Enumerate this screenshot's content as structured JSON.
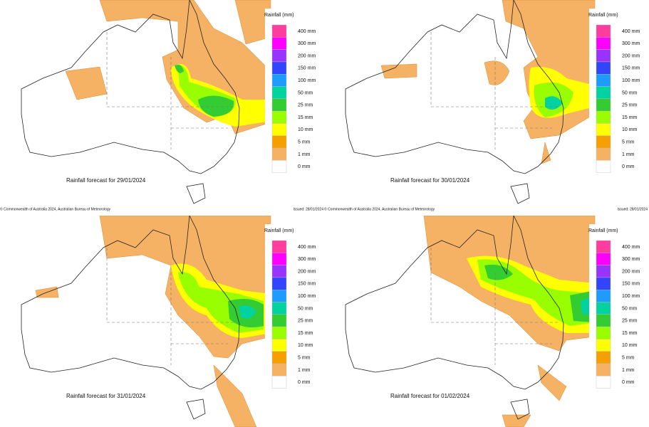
{
  "panels": [
    {
      "caption": "Rainfall forecast for 29/01/2024",
      "legend_title": "Rainfall (mm)",
      "legend": [
        {
          "label": "400 mm",
          "color": "#ff3d9e"
        },
        {
          "label": "300 mm",
          "color": "#ff00ff"
        },
        {
          "label": "200 mm",
          "color": "#9933ff"
        },
        {
          "label": "150 mm",
          "color": "#3344ff"
        },
        {
          "label": "100 mm",
          "color": "#1e9bff"
        },
        {
          "label": "50 mm",
          "color": "#00d2a0"
        },
        {
          "label": "25 mm",
          "color": "#33cc33"
        },
        {
          "label": "15 mm",
          "color": "#99ff00"
        },
        {
          "label": "10 mm",
          "color": "#ffff00"
        },
        {
          "label": "5 mm",
          "color": "#f5a000"
        },
        {
          "label": "1 mm",
          "color": "#f6b264"
        },
        {
          "label": "0 mm",
          "color": "#ffffff"
        }
      ],
      "copyright": "© Commonwealth of Australia 2024, Australian Bureau of Meteorology",
      "issued": "Issued: 28/01/2024"
    },
    {
      "caption": "Rainfall forecast for 30/01/2024",
      "legend_title": "Rainfall (mm)",
      "legend": [
        {
          "label": "400 mm",
          "color": "#ff3d9e"
        },
        {
          "label": "300 mm",
          "color": "#ff00ff"
        },
        {
          "label": "200 mm",
          "color": "#9933ff"
        },
        {
          "label": "150 mm",
          "color": "#3344ff"
        },
        {
          "label": "100 mm",
          "color": "#1e9bff"
        },
        {
          "label": "50 mm",
          "color": "#00d2a0"
        },
        {
          "label": "25 mm",
          "color": "#33cc33"
        },
        {
          "label": "15 mm",
          "color": "#99ff00"
        },
        {
          "label": "10 mm",
          "color": "#ffff00"
        },
        {
          "label": "5 mm",
          "color": "#f5a000"
        },
        {
          "label": "1 mm",
          "color": "#f6b264"
        },
        {
          "label": "0 mm",
          "color": "#ffffff"
        }
      ],
      "copyright": "© Commonwealth of Australia 2024, Australian Bureau of Meteorology",
      "issued": "Issued: 28/01/2024"
    },
    {
      "caption": "Rainfall forecast for 31/01/2024",
      "legend_title": "Rainfall (mm)",
      "legend": [
        {
          "label": "400 mm",
          "color": "#ff3d9e"
        },
        {
          "label": "300 mm",
          "color": "#ff00ff"
        },
        {
          "label": "200 mm",
          "color": "#9933ff"
        },
        {
          "label": "150 mm",
          "color": "#3344ff"
        },
        {
          "label": "100 mm",
          "color": "#1e9bff"
        },
        {
          "label": "50 mm",
          "color": "#00d2a0"
        },
        {
          "label": "25 mm",
          "color": "#33cc33"
        },
        {
          "label": "15 mm",
          "color": "#99ff00"
        },
        {
          "label": "10 mm",
          "color": "#ffff00"
        },
        {
          "label": "5 mm",
          "color": "#f5a000"
        },
        {
          "label": "1 mm",
          "color": "#f6b264"
        },
        {
          "label": "0 mm",
          "color": "#ffffff"
        }
      ]
    },
    {
      "caption": "Rainfall forecast for 01/02/2024",
      "legend_title": "Rainfall (mm)",
      "legend": [
        {
          "label": "400 mm",
          "color": "#ff3d9e"
        },
        {
          "label": "300 mm",
          "color": "#ff00ff"
        },
        {
          "label": "200 mm",
          "color": "#9933ff"
        },
        {
          "label": "150 mm",
          "color": "#3344ff"
        },
        {
          "label": "100 mm",
          "color": "#1e9bff"
        },
        {
          "label": "50 mm",
          "color": "#00d2a0"
        },
        {
          "label": "25 mm",
          "color": "#33cc33"
        },
        {
          "label": "15 mm",
          "color": "#99ff00"
        },
        {
          "label": "10 mm",
          "color": "#ffff00"
        },
        {
          "label": "5 mm",
          "color": "#f5a000"
        },
        {
          "label": "1 mm",
          "color": "#f6b264"
        },
        {
          "label": "0 mm",
          "color": "#ffffff"
        }
      ]
    }
  ]
}
